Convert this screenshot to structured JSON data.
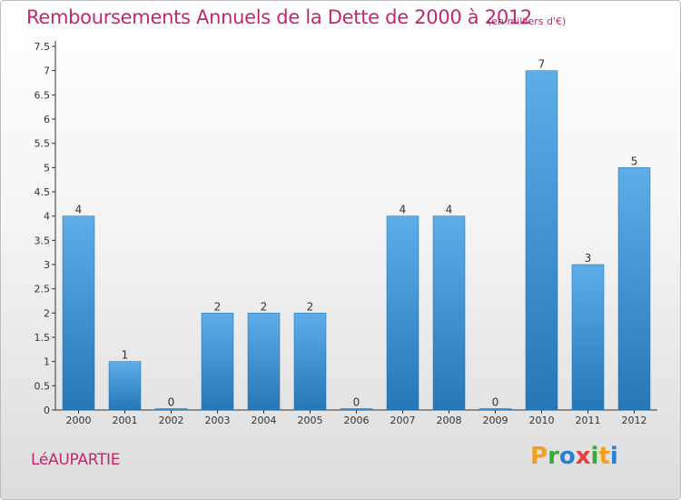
{
  "header": {
    "title": "Remboursements Annuels de la Dette de 2000 à 2012",
    "subtitle": "(en milliers d'€)"
  },
  "commune": "LéAUPARTIE",
  "logo": {
    "text": "Proxiti",
    "letters": [
      {
        "char": "P",
        "color": "#f0a020"
      },
      {
        "char": "r",
        "color": "#3aaa3a"
      },
      {
        "char": "o",
        "color": "#2a7fd0"
      },
      {
        "char": "x",
        "color": "#e84040"
      },
      {
        "char": "i",
        "color": "#3aaa3a"
      },
      {
        "char": "t",
        "color": "#f0a020"
      },
      {
        "char": "i",
        "color": "#2a7fd0"
      }
    ]
  },
  "colors": {
    "title": "#c2276f",
    "bar_top": "#5dade9",
    "bar_bottom": "#2677b8"
  },
  "chart_data": {
    "type": "bar",
    "title": "Remboursements Annuels de la Dette de 2000 à 2012",
    "subtitle": "(en milliers d'€)",
    "categories": [
      "2000",
      "2001",
      "2002",
      "2003",
      "2004",
      "2005",
      "2006",
      "2007",
      "2008",
      "2009",
      "2010",
      "2011",
      "2012"
    ],
    "values": [
      4,
      1,
      0,
      2,
      2,
      2,
      0,
      4,
      4,
      0,
      7,
      3,
      5
    ],
    "ylim": [
      0,
      7.5
    ],
    "yticks": [
      "0",
      "0.5",
      "1",
      "1.5",
      "2",
      "2.5",
      "3",
      "3.5",
      "4",
      "4.5",
      "5",
      "5.5",
      "6",
      "6.5",
      "7",
      "7.5"
    ],
    "grid": false,
    "xlabel": "",
    "ylabel": ""
  }
}
